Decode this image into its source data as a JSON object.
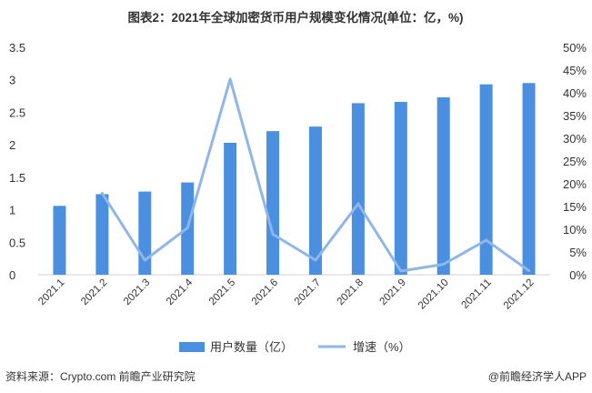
{
  "chart_data": {
    "type": "bar",
    "title": "图表2：2021年全球加密货币用户规模变化情况(单位：亿，%)",
    "categories": [
      "2021.1",
      "2021.2",
      "2021.3",
      "2021.4",
      "2021.5",
      "2021.6",
      "2021.7",
      "2021.8",
      "2021.9",
      "2021.10",
      "2021.11",
      "2021.12"
    ],
    "series": [
      {
        "name": "用户数量（亿）",
        "type": "bar",
        "axis": "left",
        "color": "#4a8fe0",
        "values": [
          1.06,
          1.24,
          1.28,
          1.42,
          2.03,
          2.21,
          2.28,
          2.64,
          2.66,
          2.73,
          2.93,
          2.95
        ]
      },
      {
        "name": "增速（%）",
        "type": "line",
        "axis": "right",
        "color": "#8fb6e8",
        "values": [
          null,
          17.9,
          3.2,
          10.3,
          43,
          8.9,
          3.2,
          15.6,
          0.8,
          2.3,
          7.6,
          0.9
        ]
      }
    ],
    "y_left": {
      "min": 0,
      "max": 3.5,
      "ticks": [
        "0",
        "0.5",
        "1",
        "1.5",
        "2",
        "2.5",
        "3",
        "3.5"
      ]
    },
    "y_right": {
      "min": 0,
      "max": 50,
      "ticks": [
        "0%",
        "5%",
        "10%",
        "15%",
        "20%",
        "25%",
        "30%",
        "35%",
        "40%",
        "45%",
        "50%"
      ]
    },
    "grid": false,
    "legend_position": "bottom"
  },
  "footer": {
    "source": "资料来源：Crypto.com 前瞻产业研究院",
    "brand": "@前瞻经济学人APP"
  }
}
